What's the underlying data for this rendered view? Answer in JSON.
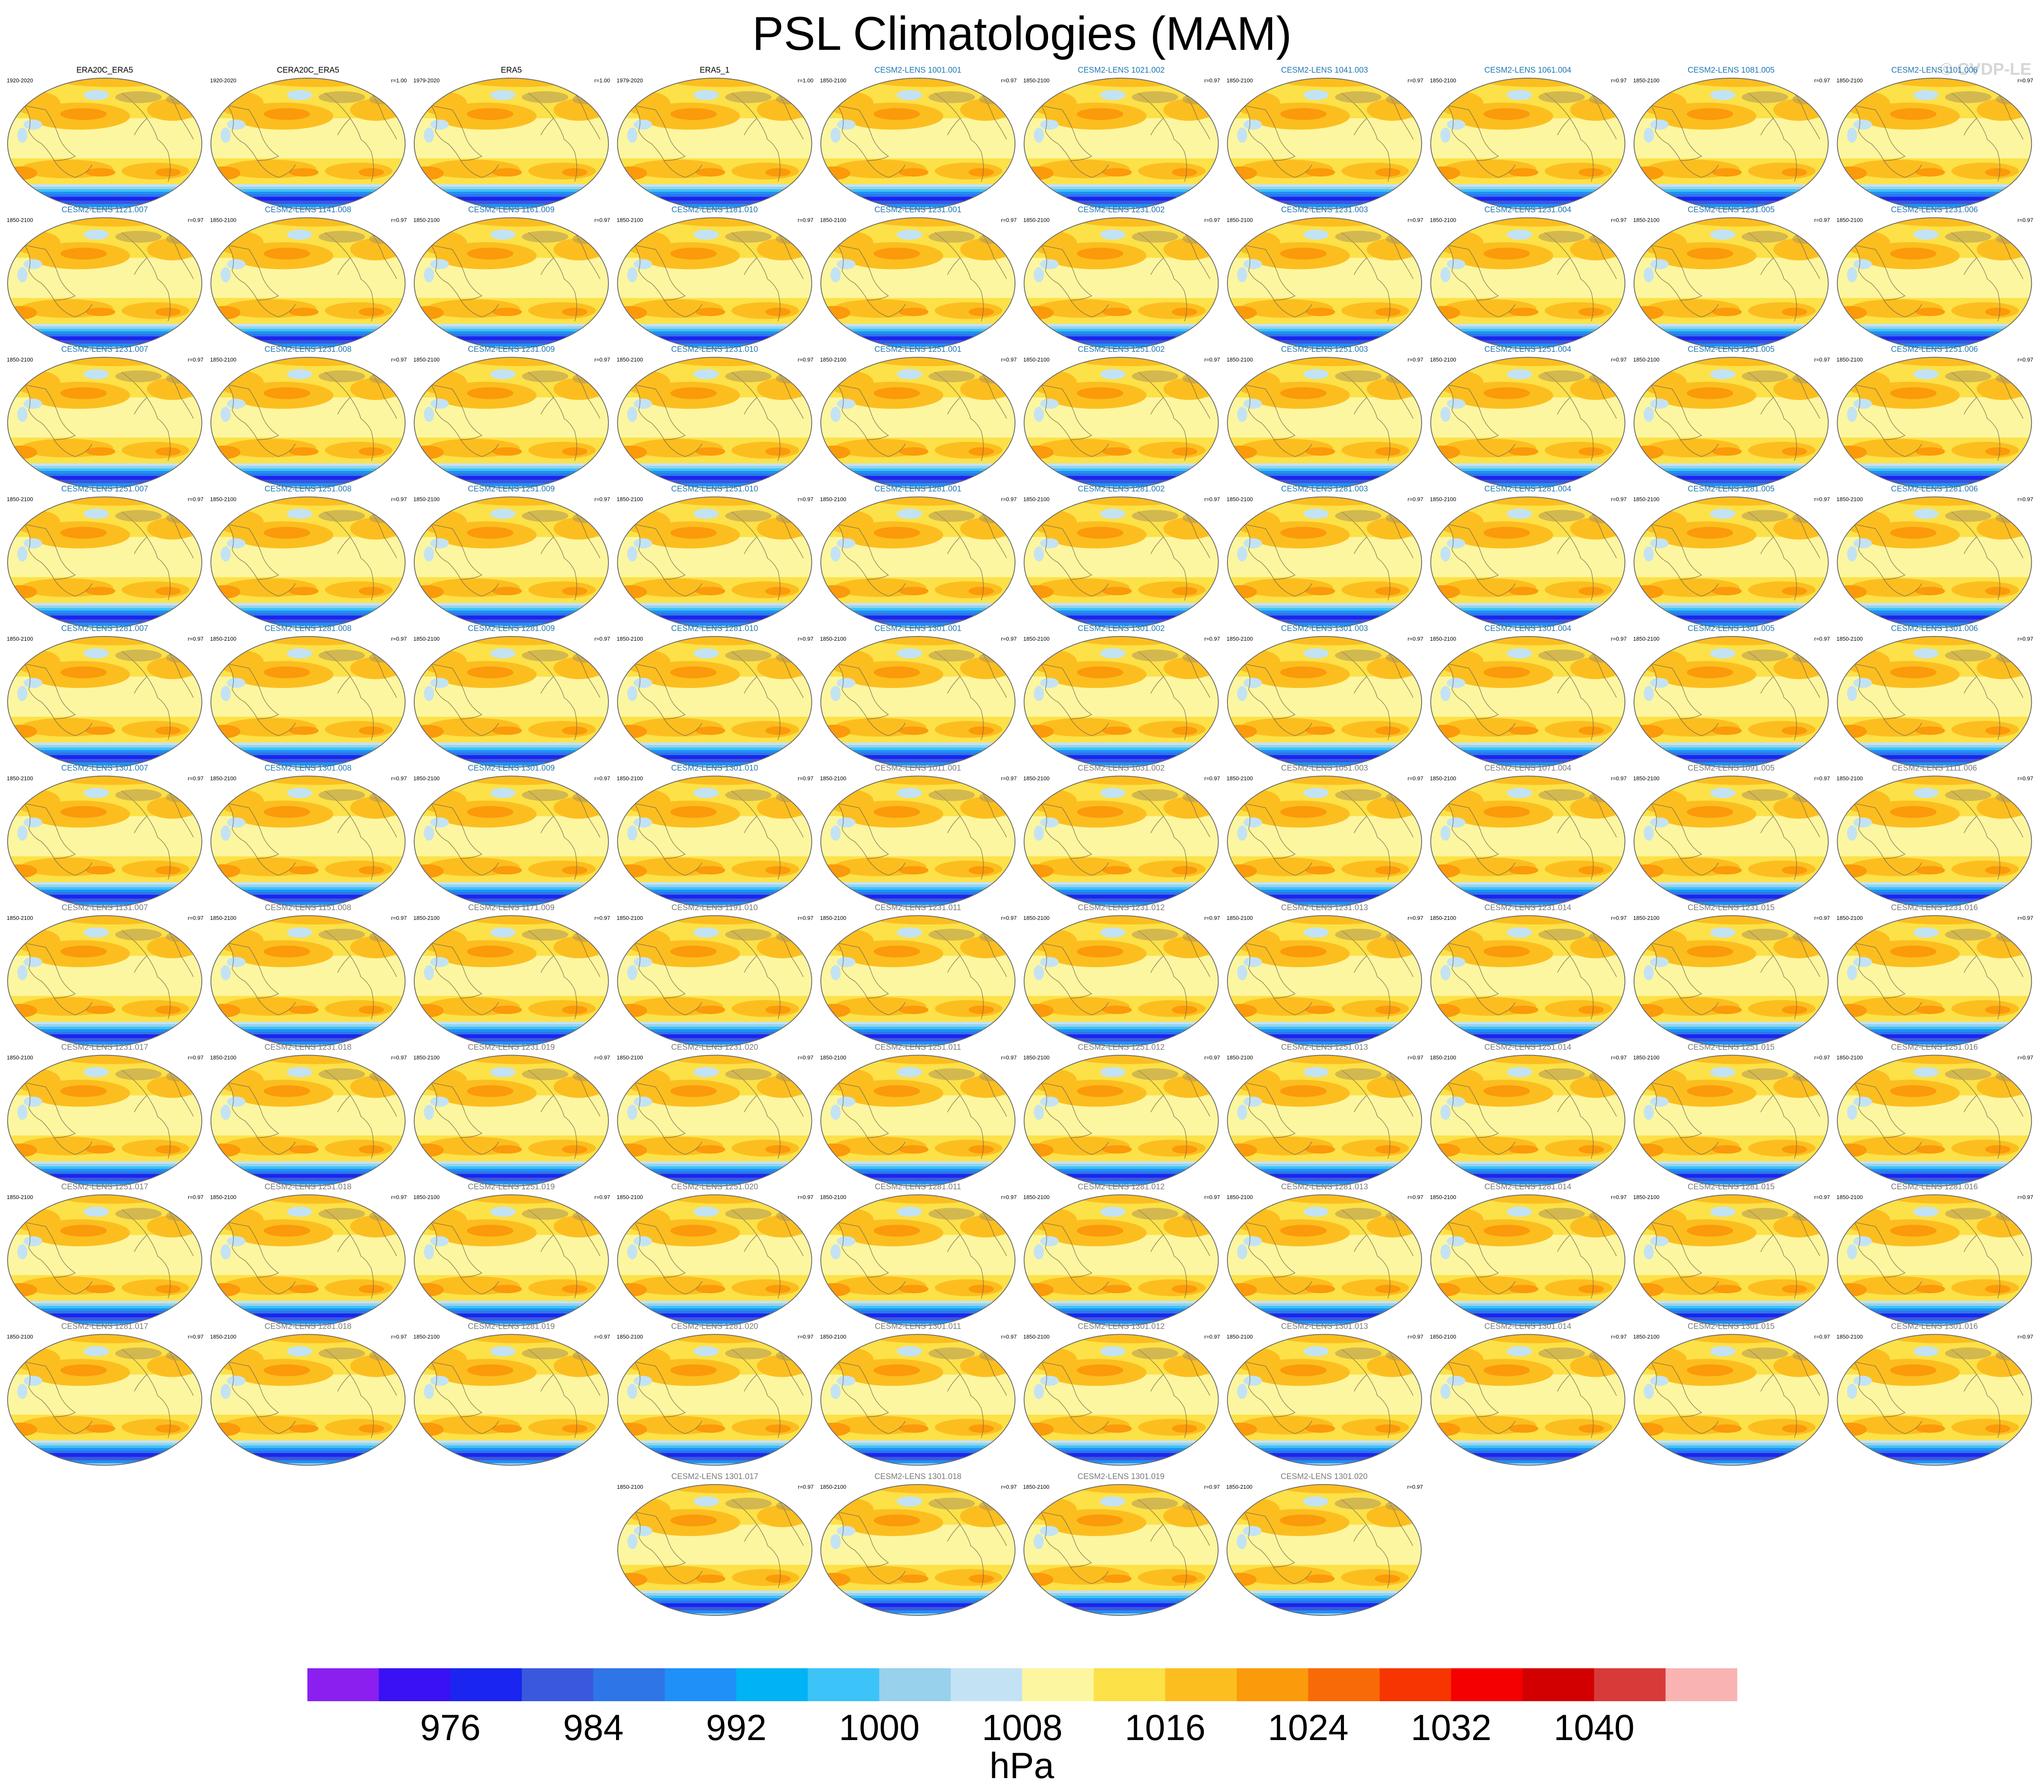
{
  "title": "PSL Climatologies (MAM)",
  "watermark": "© CVDP-LE",
  "chart_data": {
    "type": "heatmap",
    "title": "PSL Climatologies (MAM)",
    "projection": "Robinson global map, Pacific-centered",
    "unit_label": "hPa",
    "colorbar": {
      "tick_labels": [
        "976",
        "984",
        "992",
        "1000",
        "1008",
        "1016",
        "1024",
        "1032",
        "1040"
      ],
      "colors": [
        "#8a1ff0",
        "#3a10f5",
        "#1a25f0",
        "#3a58de",
        "#2e75e8",
        "#1f90f7",
        "#00b3f5",
        "#3cc3f7",
        "#98d1ec",
        "#c3e3f4",
        "#fdf6a0",
        "#fce148",
        "#fcbe1f",
        "#fb9a0a",
        "#f86a08",
        "#f73500",
        "#f50000",
        "#d20000",
        "#d83a3a",
        "#fab3b3"
      ]
    },
    "panels": [
      {
        "label": "ERA20C_ERA5",
        "period": "1920-2020",
        "r": "",
        "label_color": "black"
      },
      {
        "label": "CERA20C_ERA5",
        "period": "1920-2020",
        "r": "r=1.00",
        "label_color": "black"
      },
      {
        "label": "ERA5",
        "period": "1979-2020",
        "r": "r=1.00",
        "label_color": "black"
      },
      {
        "label": "ERA5_1",
        "period": "1979-2020",
        "r": "r=1.00",
        "label_color": "black"
      },
      {
        "label": "CESM2-LENS 1001.001",
        "period": "1850-2100",
        "r": "r=0.97",
        "label_color": "blue"
      },
      {
        "label": "CESM2-LENS 1021.002",
        "period": "1850-2100",
        "r": "r=0.97",
        "label_color": "blue"
      },
      {
        "label": "CESM2-LENS 1041.003",
        "period": "1850-2100",
        "r": "r=0.97",
        "label_color": "blue"
      },
      {
        "label": "CESM2-LENS 1061.004",
        "period": "1850-2100",
        "r": "r=0.97",
        "label_color": "blue"
      },
      {
        "label": "CESM2-LENS 1081.005",
        "period": "1850-2100",
        "r": "r=0.97",
        "label_color": "blue"
      },
      {
        "label": "CESM2-LENS 1101.006",
        "period": "1850-2100",
        "r": "r=0.97",
        "label_color": "blue"
      },
      {
        "label": "CESM2-LENS 1121.007",
        "period": "1850-2100",
        "r": "r=0.97",
        "label_color": "blue"
      },
      {
        "label": "CESM2-LENS 1141.008",
        "period": "1850-2100",
        "r": "r=0.97",
        "label_color": "blue"
      },
      {
        "label": "CESM2-LENS 1161.009",
        "period": "1850-2100",
        "r": "r=0.97",
        "label_color": "blue"
      },
      {
        "label": "CESM2-LENS 1181.010",
        "period": "1850-2100",
        "r": "r=0.97",
        "label_color": "blue"
      },
      {
        "label": "CESM2-LENS 1231.001",
        "period": "1850-2100",
        "r": "r=0.97",
        "label_color": "blue"
      },
      {
        "label": "CESM2-LENS 1231.002",
        "period": "1850-2100",
        "r": "r=0.97",
        "label_color": "blue"
      },
      {
        "label": "CESM2-LENS 1231.003",
        "period": "1850-2100",
        "r": "r=0.97",
        "label_color": "blue"
      },
      {
        "label": "CESM2-LENS 1231.004",
        "period": "1850-2100",
        "r": "r=0.97",
        "label_color": "blue"
      },
      {
        "label": "CESM2-LENS 1231.005",
        "period": "1850-2100",
        "r": "r=0.97",
        "label_color": "blue"
      },
      {
        "label": "CESM2-LENS 1231.006",
        "period": "1850-2100",
        "r": "r=0.97",
        "label_color": "blue"
      },
      {
        "label": "CESM2-LENS 1231.007",
        "period": "1850-2100",
        "r": "r=0.97",
        "label_color": "blue"
      },
      {
        "label": "CESM2-LENS 1231.008",
        "period": "1850-2100",
        "r": "r=0.97",
        "label_color": "blue"
      },
      {
        "label": "CESM2-LENS 1231.009",
        "period": "1850-2100",
        "r": "r=0.97",
        "label_color": "blue"
      },
      {
        "label": "CESM2-LENS 1231.010",
        "period": "1850-2100",
        "r": "r=0.97",
        "label_color": "blue"
      },
      {
        "label": "CESM2-LENS 1251.001",
        "period": "1850-2100",
        "r": "r=0.97",
        "label_color": "blue"
      },
      {
        "label": "CESM2-LENS 1251.002",
        "period": "1850-2100",
        "r": "r=0.97",
        "label_color": "blue"
      },
      {
        "label": "CESM2-LENS 1251.003",
        "period": "1850-2100",
        "r": "r=0.97",
        "label_color": "blue"
      },
      {
        "label": "CESM2-LENS 1251.004",
        "period": "1850-2100",
        "r": "r=0.97",
        "label_color": "blue"
      },
      {
        "label": "CESM2-LENS 1251.005",
        "period": "1850-2100",
        "r": "r=0.97",
        "label_color": "blue"
      },
      {
        "label": "CESM2-LENS 1251.006",
        "period": "1850-2100",
        "r": "r=0.97",
        "label_color": "blue"
      },
      {
        "label": "CESM2-LENS 1251.007",
        "period": "1850-2100",
        "r": "r=0.97",
        "label_color": "blue"
      },
      {
        "label": "CESM2-LENS 1251.008",
        "period": "1850-2100",
        "r": "r=0.97",
        "label_color": "blue"
      },
      {
        "label": "CESM2-LENS 1251.009",
        "period": "1850-2100",
        "r": "r=0.97",
        "label_color": "blue"
      },
      {
        "label": "CESM2-LENS 1251.010",
        "period": "1850-2100",
        "r": "r=0.97",
        "label_color": "blue"
      },
      {
        "label": "CESM2-LENS 1281.001",
        "period": "1850-2100",
        "r": "r=0.97",
        "label_color": "blue"
      },
      {
        "label": "CESM2-LENS 1281.002",
        "period": "1850-2100",
        "r": "r=0.97",
        "label_color": "blue"
      },
      {
        "label": "CESM2-LENS 1281.003",
        "period": "1850-2100",
        "r": "r=0.97",
        "label_color": "blue"
      },
      {
        "label": "CESM2-LENS 1281.004",
        "period": "1850-2100",
        "r": "r=0.97",
        "label_color": "blue"
      },
      {
        "label": "CESM2-LENS 1281.005",
        "period": "1850-2100",
        "r": "r=0.97",
        "label_color": "blue"
      },
      {
        "label": "CESM2-LENS 1281.006",
        "period": "1850-2100",
        "r": "r=0.97",
        "label_color": "blue"
      },
      {
        "label": "CESM2-LENS 1281.007",
        "period": "1850-2100",
        "r": "r=0.97",
        "label_color": "blue"
      },
      {
        "label": "CESM2-LENS 1281.008",
        "period": "1850-2100",
        "r": "r=0.97",
        "label_color": "blue"
      },
      {
        "label": "CESM2-LENS 1281.009",
        "period": "1850-2100",
        "r": "r=0.97",
        "label_color": "blue"
      },
      {
        "label": "CESM2-LENS 1281.010",
        "period": "1850-2100",
        "r": "r=0.97",
        "label_color": "blue"
      },
      {
        "label": "CESM2-LENS 1301.001",
        "period": "1850-2100",
        "r": "r=0.97",
        "label_color": "blue"
      },
      {
        "label": "CESM2-LENS 1301.002",
        "period": "1850-2100",
        "r": "r=0.97",
        "label_color": "blue"
      },
      {
        "label": "CESM2-LENS 1301.003",
        "period": "1850-2100",
        "r": "r=0.97",
        "label_color": "blue"
      },
      {
        "label": "CESM2-LENS 1301.004",
        "period": "1850-2100",
        "r": "r=0.97",
        "label_color": "blue"
      },
      {
        "label": "CESM2-LENS 1301.005",
        "period": "1850-2100",
        "r": "r=0.97",
        "label_color": "blue"
      },
      {
        "label": "CESM2-LENS 1301.006",
        "period": "1850-2100",
        "r": "r=0.97",
        "label_color": "blue"
      },
      {
        "label": "CESM2-LENS 1301.007",
        "period": "1850-2100",
        "r": "r=0.97",
        "label_color": "blue"
      },
      {
        "label": "CESM2-LENS 1301.008",
        "period": "1850-2100",
        "r": "r=0.97",
        "label_color": "blue"
      },
      {
        "label": "CESM2-LENS 1301.009",
        "period": "1850-2100",
        "r": "r=0.97",
        "label_color": "blue"
      },
      {
        "label": "CESM2-LENS 1301.010",
        "period": "1850-2100",
        "r": "r=0.97",
        "label_color": "blue"
      },
      {
        "label": "CESM2-LENS 1011.001",
        "period": "1850-2100",
        "r": "r=0.97",
        "label_color": "gray"
      },
      {
        "label": "CESM2-LENS 1031.002",
        "period": "1850-2100",
        "r": "r=0.97",
        "label_color": "gray"
      },
      {
        "label": "CESM2-LENS 1051.003",
        "period": "1850-2100",
        "r": "r=0.97",
        "label_color": "gray"
      },
      {
        "label": "CESM2-LENS 1071.004",
        "period": "1850-2100",
        "r": "r=0.97",
        "label_color": "gray"
      },
      {
        "label": "CESM2-LENS 1091.005",
        "period": "1850-2100",
        "r": "r=0.97",
        "label_color": "gray"
      },
      {
        "label": "CESM2-LENS 1111.006",
        "period": "1850-2100",
        "r": "r=0.97",
        "label_color": "gray"
      },
      {
        "label": "CESM2-LENS 1131.007",
        "period": "1850-2100",
        "r": "r=0.97",
        "label_color": "gray"
      },
      {
        "label": "CESM2-LENS 1151.008",
        "period": "1850-2100",
        "r": "r=0.97",
        "label_color": "gray"
      },
      {
        "label": "CESM2-LENS 1171.009",
        "period": "1850-2100",
        "r": "r=0.97",
        "label_color": "gray"
      },
      {
        "label": "CESM2-LENS 1191.010",
        "period": "1850-2100",
        "r": "r=0.97",
        "label_color": "gray"
      },
      {
        "label": "CESM2-LENS 1231.011",
        "period": "1850-2100",
        "r": "r=0.97",
        "label_color": "gray"
      },
      {
        "label": "CESM2-LENS 1231.012",
        "period": "1850-2100",
        "r": "r=0.97",
        "label_color": "gray"
      },
      {
        "label": "CESM2-LENS 1231.013",
        "period": "1850-2100",
        "r": "r=0.97",
        "label_color": "gray"
      },
      {
        "label": "CESM2-LENS 1231.014",
        "period": "1850-2100",
        "r": "r=0.97",
        "label_color": "gray"
      },
      {
        "label": "CESM2-LENS 1231.015",
        "period": "1850-2100",
        "r": "r=0.97",
        "label_color": "gray"
      },
      {
        "label": "CESM2-LENS 1231.016",
        "period": "1850-2100",
        "r": "r=0.97",
        "label_color": "gray"
      },
      {
        "label": "CESM2-LENS 1231.017",
        "period": "1850-2100",
        "r": "r=0.97",
        "label_color": "gray"
      },
      {
        "label": "CESM2-LENS 1231.018",
        "period": "1850-2100",
        "r": "r=0.97",
        "label_color": "gray"
      },
      {
        "label": "CESM2-LENS 1231.019",
        "period": "1850-2100",
        "r": "r=0.97",
        "label_color": "gray"
      },
      {
        "label": "CESM2-LENS 1231.020",
        "period": "1850-2100",
        "r": "r=0.97",
        "label_color": "gray"
      },
      {
        "label": "CESM2-LENS 1251.011",
        "period": "1850-2100",
        "r": "r=0.97",
        "label_color": "gray"
      },
      {
        "label": "CESM2-LENS 1251.012",
        "period": "1850-2100",
        "r": "r=0.97",
        "label_color": "gray"
      },
      {
        "label": "CESM2-LENS 1251.013",
        "period": "1850-2100",
        "r": "r=0.97",
        "label_color": "gray"
      },
      {
        "label": "CESM2-LENS 1251.014",
        "period": "1850-2100",
        "r": "r=0.97",
        "label_color": "gray"
      },
      {
        "label": "CESM2-LENS 1251.015",
        "period": "1850-2100",
        "r": "r=0.97",
        "label_color": "gray"
      },
      {
        "label": "CESM2-LENS 1251.016",
        "period": "1850-2100",
        "r": "r=0.97",
        "label_color": "gray"
      },
      {
        "label": "CESM2-LENS 1251.017",
        "period": "1850-2100",
        "r": "r=0.97",
        "label_color": "gray"
      },
      {
        "label": "CESM2-LENS 1251.018",
        "period": "1850-2100",
        "r": "r=0.97",
        "label_color": "gray"
      },
      {
        "label": "CESM2-LENS 1251.019",
        "period": "1850-2100",
        "r": "r=0.97",
        "label_color": "gray"
      },
      {
        "label": "CESM2-LENS 1251.020",
        "period": "1850-2100",
        "r": "r=0.97",
        "label_color": "gray"
      },
      {
        "label": "CESM2-LENS 1281.011",
        "period": "1850-2100",
        "r": "r=0.97",
        "label_color": "gray"
      },
      {
        "label": "CESM2-LENS 1281.012",
        "period": "1850-2100",
        "r": "r=0.97",
        "label_color": "gray"
      },
      {
        "label": "CESM2-LENS 1281.013",
        "period": "1850-2100",
        "r": "r=0.97",
        "label_color": "gray"
      },
      {
        "label": "CESM2-LENS 1281.014",
        "period": "1850-2100",
        "r": "r=0.97",
        "label_color": "gray"
      },
      {
        "label": "CESM2-LENS 1281.015",
        "period": "1850-2100",
        "r": "r=0.97",
        "label_color": "gray"
      },
      {
        "label": "CESM2-LENS 1281.016",
        "period": "1850-2100",
        "r": "r=0.97",
        "label_color": "gray"
      },
      {
        "label": "CESM2-LENS 1281.017",
        "period": "1850-2100",
        "r": "r=0.97",
        "label_color": "gray"
      },
      {
        "label": "CESM2-LENS 1281.018",
        "period": "1850-2100",
        "r": "r=0.97",
        "label_color": "gray"
      },
      {
        "label": "CESM2-LENS 1281.019",
        "period": "1850-2100",
        "r": "r=0.97",
        "label_color": "gray"
      },
      {
        "label": "CESM2-LENS 1281.020",
        "period": "1850-2100",
        "r": "r=0.97",
        "label_color": "gray"
      },
      {
        "label": "CESM2-LENS 1301.011",
        "period": "1850-2100",
        "r": "r=0.97",
        "label_color": "gray"
      },
      {
        "label": "CESM2-LENS 1301.012",
        "period": "1850-2100",
        "r": "r=0.97",
        "label_color": "gray"
      },
      {
        "label": "CESM2-LENS 1301.013",
        "period": "1850-2100",
        "r": "r=0.97",
        "label_color": "gray"
      },
      {
        "label": "CESM2-LENS 1301.014",
        "period": "1850-2100",
        "r": "r=0.97",
        "label_color": "gray"
      },
      {
        "label": "CESM2-LENS 1301.015",
        "period": "1850-2100",
        "r": "r=0.97",
        "label_color": "gray"
      },
      {
        "label": "CESM2-LENS 1301.016",
        "period": "1850-2100",
        "r": "r=0.97",
        "label_color": "gray"
      },
      {
        "label": "CESM2-LENS 1301.017",
        "period": "1850-2100",
        "r": "r=0.97",
        "label_color": "gray"
      },
      {
        "label": "CESM2-LENS 1301.018",
        "period": "1850-2100",
        "r": "r=0.97",
        "label_color": "gray"
      },
      {
        "label": "CESM2-LENS 1301.019",
        "period": "1850-2100",
        "r": "r=0.97",
        "label_color": "gray"
      },
      {
        "label": "CESM2-LENS 1301.020",
        "period": "1850-2100",
        "r": "r=0.97",
        "label_color": "gray"
      }
    ]
  }
}
